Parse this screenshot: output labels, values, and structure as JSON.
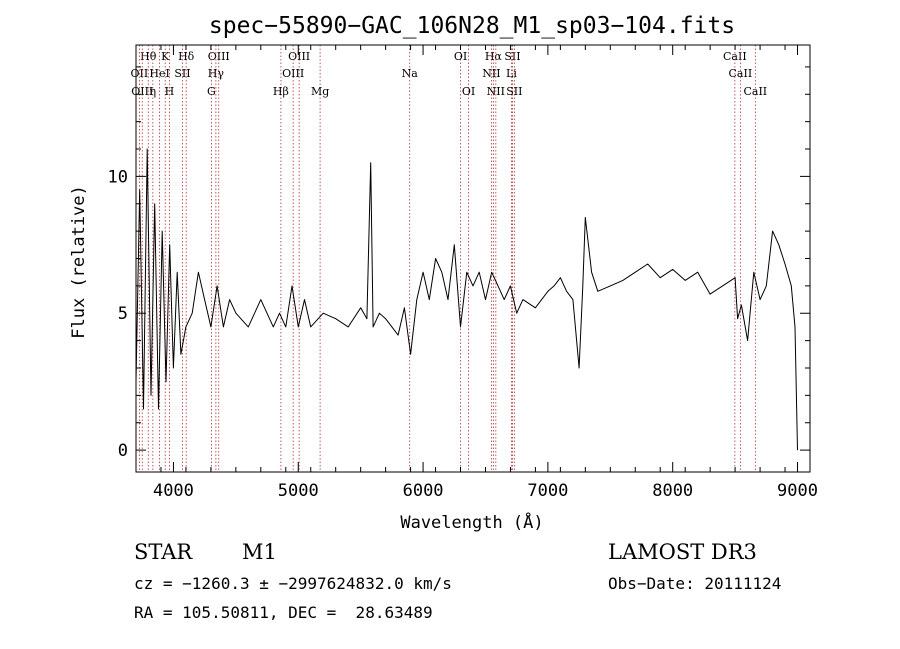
{
  "chart_data": {
    "type": "line",
    "title": "spec−55890−GAC_106N28_M1_sp03−104.fits",
    "xlabel": "Wavelength (Å)",
    "ylabel": "Flux (relative)",
    "xlim": [
      3700,
      9100
    ],
    "ylim": [
      -0.8,
      14.8
    ],
    "xticks": [
      4000,
      5000,
      6000,
      7000,
      8000,
      9000
    ],
    "yticks": [
      0,
      5,
      10
    ],
    "line_color": "#000000",
    "marker_color": "#b03030",
    "spectrum": {
      "wavelength": [
        3700,
        3730,
        3760,
        3790,
        3820,
        3850,
        3880,
        3910,
        3940,
        3970,
        4000,
        4030,
        4060,
        4100,
        4150,
        4200,
        4250,
        4300,
        4350,
        4400,
        4450,
        4500,
        4600,
        4700,
        4800,
        4850,
        4900,
        4950,
        5000,
        5050,
        5100,
        5200,
        5300,
        5400,
        5500,
        5550,
        5580,
        5600,
        5650,
        5700,
        5800,
        5850,
        5900,
        5950,
        6000,
        6050,
        6100,
        6150,
        6200,
        6250,
        6300,
        6350,
        6400,
        6450,
        6500,
        6550,
        6600,
        6650,
        6700,
        6750,
        6800,
        6900,
        7000,
        7050,
        7100,
        7150,
        7200,
        7250,
        7280,
        7300,
        7350,
        7400,
        7500,
        7600,
        7700,
        7800,
        7900,
        8000,
        8100,
        8200,
        8300,
        8400,
        8500,
        8520,
        8550,
        8600,
        8650,
        8700,
        8750,
        8800,
        8850,
        8900,
        8950,
        8980,
        9000
      ],
      "flux": [
        2.5,
        9.5,
        1.5,
        11.0,
        2.0,
        9.0,
        1.5,
        8.0,
        2.5,
        7.5,
        3.0,
        6.5,
        3.5,
        4.5,
        5.0,
        6.5,
        5.5,
        4.5,
        6.0,
        4.5,
        5.5,
        5.0,
        4.5,
        5.5,
        4.5,
        5.0,
        4.5,
        6.0,
        4.5,
        5.5,
        4.5,
        5.0,
        4.8,
        4.5,
        5.2,
        4.8,
        10.5,
        4.5,
        5.0,
        4.8,
        4.2,
        5.2,
        3.5,
        5.5,
        6.5,
        5.5,
        7.0,
        6.5,
        5.5,
        7.5,
        4.5,
        6.5,
        6.0,
        6.5,
        5.5,
        6.5,
        6.0,
        5.5,
        6.0,
        5.0,
        5.5,
        5.2,
        5.8,
        6.0,
        6.3,
        5.8,
        5.5,
        3.0,
        6.0,
        8.5,
        6.5,
        5.8,
        6.0,
        6.2,
        6.5,
        6.8,
        6.3,
        6.6,
        6.2,
        6.5,
        5.7,
        6.0,
        6.3,
        4.8,
        5.3,
        4.0,
        6.5,
        5.5,
        6.0,
        8.0,
        7.5,
        6.8,
        6.0,
        4.5,
        0.0
      ]
    },
    "lines": [
      {
        "label": "Hθ",
        "wl": 3798,
        "row": 0
      },
      {
        "label": "K",
        "wl": 3934,
        "row": 0
      },
      {
        "label": "Hδ",
        "wl": 4102,
        "row": 0
      },
      {
        "label": "OIII",
        "wl": 4363,
        "row": 0
      },
      {
        "label": "OIII",
        "wl": 5007,
        "row": 0
      },
      {
        "label": "OI",
        "wl": 6300,
        "row": 0
      },
      {
        "label": "Hα",
        "wl": 6563,
        "row": 0
      },
      {
        "label": "SII",
        "wl": 6716,
        "row": 0
      },
      {
        "label": "CaII",
        "wl": 8498,
        "row": 0
      },
      {
        "label": "OII",
        "wl": 3727,
        "row": 1
      },
      {
        "label": "HeI",
        "wl": 3889,
        "row": 1
      },
      {
        "label": "SII",
        "wl": 4072,
        "row": 1
      },
      {
        "label": "Hγ",
        "wl": 4340,
        "row": 1
      },
      {
        "label": "OIII",
        "wl": 4959,
        "row": 1
      },
      {
        "label": "Na",
        "wl": 5893,
        "row": 1
      },
      {
        "label": "NII",
        "wl": 6548,
        "row": 1
      },
      {
        "label": "Li",
        "wl": 6708,
        "row": 1
      },
      {
        "label": "CaII",
        "wl": 8542,
        "row": 1
      },
      {
        "label": "OIII",
        "wl": 3750,
        "row": 2
      },
      {
        "label": "η",
        "wl": 3835,
        "row": 2
      },
      {
        "label": "H",
        "wl": 3968,
        "row": 2
      },
      {
        "label": "G",
        "wl": 4304,
        "row": 2
      },
      {
        "label": "Hβ",
        "wl": 4861,
        "row": 2
      },
      {
        "label": "Mg",
        "wl": 5175,
        "row": 2
      },
      {
        "label": "OI",
        "wl": 6364,
        "row": 2
      },
      {
        "label": "NII",
        "wl": 6583,
        "row": 2
      },
      {
        "label": "SII",
        "wl": 6731,
        "row": 2
      },
      {
        "label": "CaII",
        "wl": 8662,
        "row": 2
      }
    ]
  },
  "info": {
    "obj_type": "STAR",
    "subclass": "M1",
    "survey": "LAMOST DR3",
    "cz": "cz = −1260.3 ± −2997624832.0 km/s",
    "obs_date": "Obs−Date: 20111124",
    "coords": "RA = 105.50811, DEC =  28.63489"
  }
}
